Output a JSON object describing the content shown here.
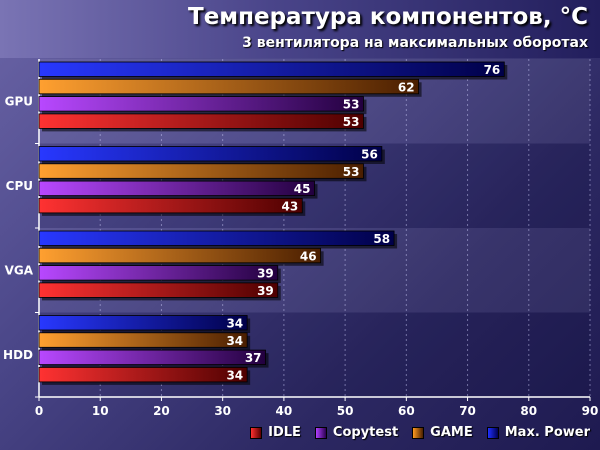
{
  "chart_data": {
    "type": "bar",
    "orientation": "horizontal",
    "title": "Температура компонентов, °C",
    "subtitle": "3 вентилятора на максимальных оборотах",
    "categories": [
      "GPU",
      "CPU",
      "VGA",
      "HDD"
    ],
    "series": [
      {
        "name": "Max. Power",
        "color": "#0a14e0",
        "values": [
          76,
          56,
          58,
          34
        ]
      },
      {
        "name": "GAME",
        "color": "#e07d0c",
        "values": [
          62,
          53,
          46,
          34
        ]
      },
      {
        "name": "Copytest",
        "color": "#8a1ed8",
        "values": [
          53,
          45,
          39,
          37
        ]
      },
      {
        "name": "IDLE",
        "color": "#e01818",
        "values": [
          53,
          43,
          39,
          34
        ]
      }
    ],
    "legend_order": [
      "IDLE",
      "Copytest",
      "GAME",
      "Max. Power"
    ],
    "x_ticks": [
      0,
      10,
      20,
      30,
      40,
      50,
      60,
      70,
      80,
      90
    ],
    "xlim": [
      0,
      90
    ],
    "grid": true,
    "legend_position": "bottom-right"
  }
}
